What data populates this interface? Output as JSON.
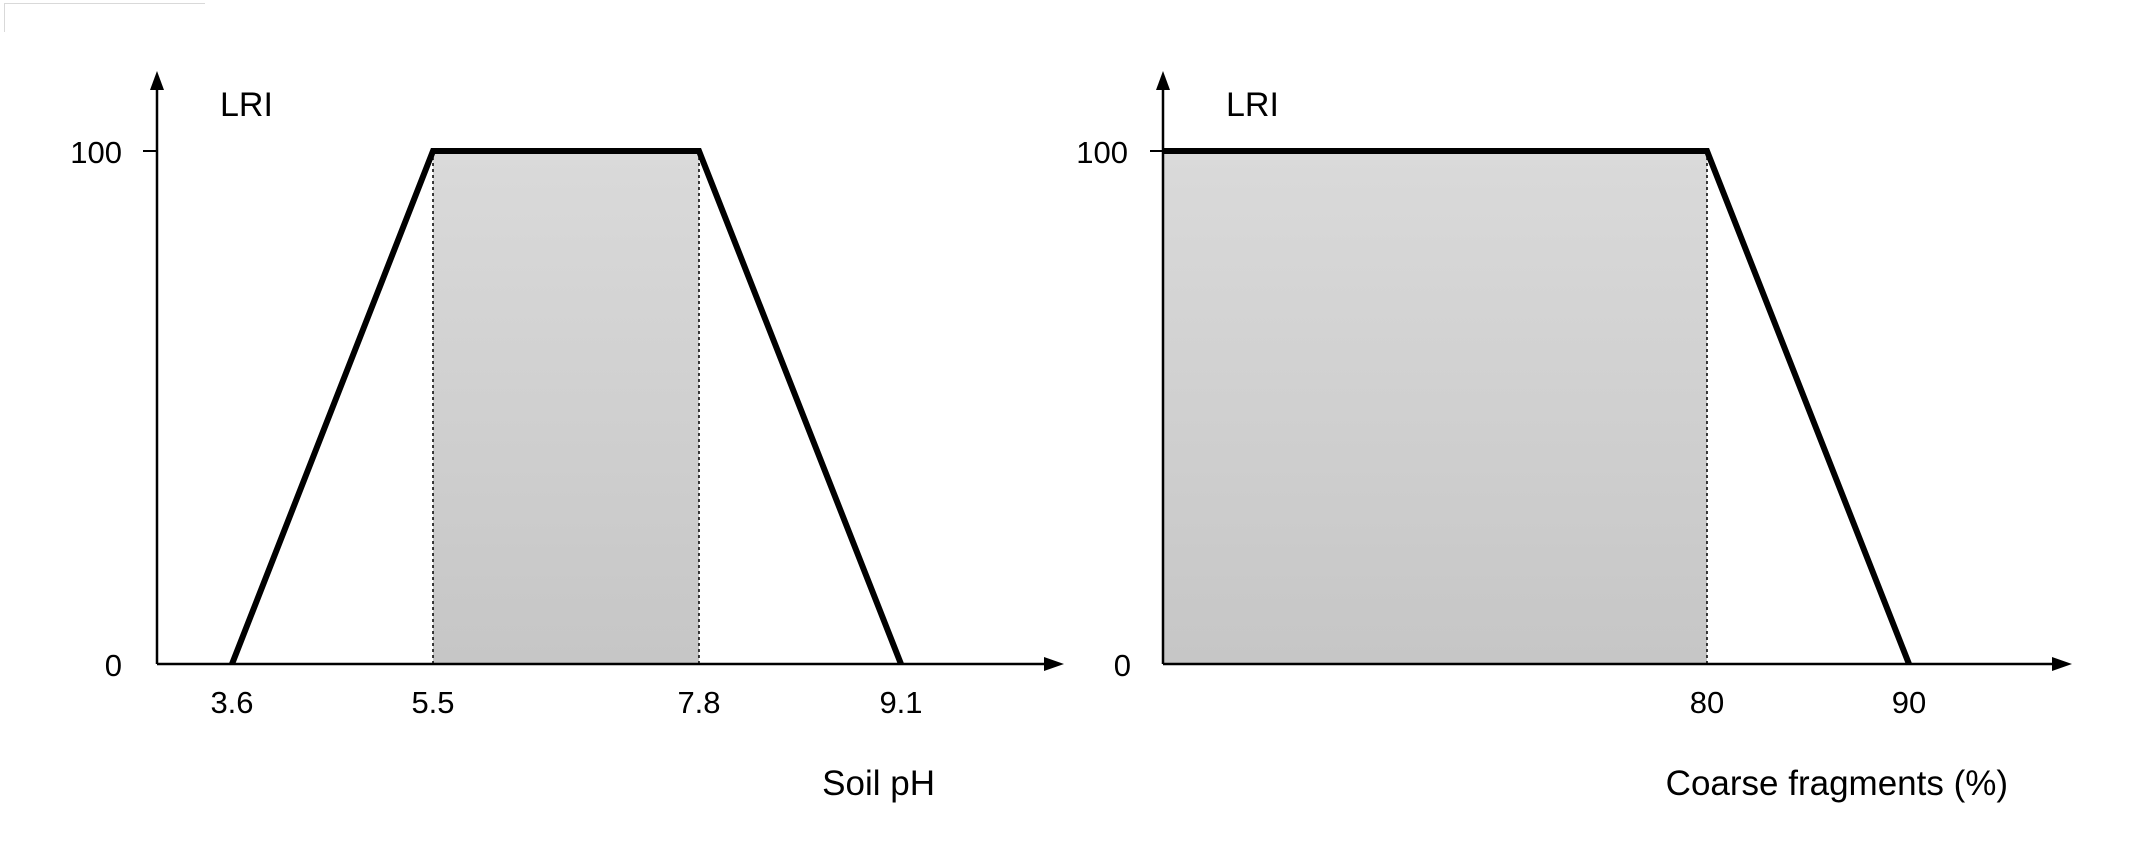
{
  "colors": {
    "line": "#000000",
    "fill_top": "#dadada",
    "fill_bottom": "#c6c6c6"
  },
  "chart_data": [
    {
      "type": "line",
      "title": "",
      "ylabel": "LRI",
      "xlabel": "Soil pH",
      "ylim": [
        0,
        100
      ],
      "y_ticks": [
        "0",
        "100"
      ],
      "x_ticks": [
        "3.6",
        "5.5",
        "7.8",
        "9.1"
      ],
      "series": [
        {
          "x": [
            3.6,
            5.5,
            7.8,
            9.1
          ],
          "y": [
            0,
            100,
            100,
            0
          ]
        }
      ],
      "shaded_range": [
        5.5,
        7.8
      ]
    },
    {
      "type": "line",
      "title": "",
      "ylabel": "LRI",
      "xlabel": "Coarse fragments (%)",
      "ylim": [
        0,
        100
      ],
      "y_ticks": [
        "0",
        "100"
      ],
      "x_ticks": [
        "80",
        "90"
      ],
      "series": [
        {
          "x": [
            0,
            80,
            90
          ],
          "y": [
            100,
            100,
            0
          ]
        }
      ],
      "shaded_range": [
        0,
        80
      ]
    }
  ]
}
